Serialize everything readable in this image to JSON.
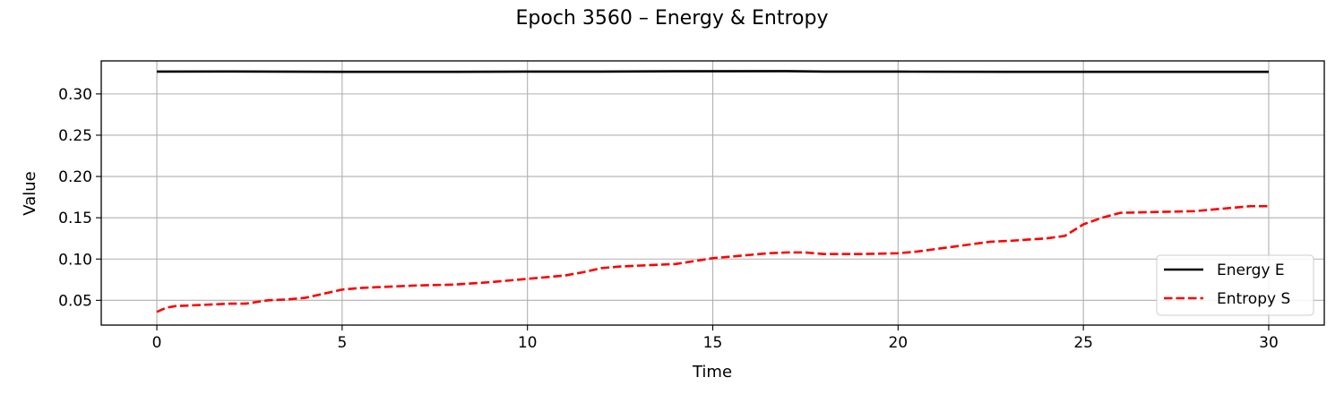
{
  "chart_data": {
    "type": "line",
    "title": "Epoch 3560 – Energy & Entropy",
    "xlabel": "Time",
    "ylabel": "Value",
    "xlim": [
      -1.5,
      31.5
    ],
    "ylim": [
      0.02,
      0.34
    ],
    "xticks": [
      0,
      5,
      10,
      15,
      20,
      25,
      30
    ],
    "yticks": [
      0.05,
      0.1,
      0.15,
      0.2,
      0.25,
      0.3
    ],
    "xtick_labels": [
      "0",
      "5",
      "10",
      "15",
      "20",
      "25",
      "30"
    ],
    "ytick_labels": [
      "0.05",
      "0.10",
      "0.15",
      "0.20",
      "0.25",
      "0.30"
    ],
    "grid": true,
    "legend_position": "lower-right",
    "series": [
      {
        "name": "Energy E",
        "color": "#000000",
        "style": "solid",
        "x": [
          0,
          2,
          5,
          8,
          10,
          12,
          14,
          17,
          18,
          20,
          23,
          25,
          27,
          30
        ],
        "y": [
          0.327,
          0.3272,
          0.3268,
          0.3268,
          0.327,
          0.327,
          0.3275,
          0.3276,
          0.327,
          0.327,
          0.3268,
          0.3268,
          0.3268,
          0.3268
        ]
      },
      {
        "name": "Entropy S",
        "color": "#ff0000",
        "style": "dashed",
        "x": [
          0,
          0.25,
          0.5,
          1,
          1.5,
          2,
          2.4,
          3,
          3.5,
          4,
          4.5,
          5,
          5.5,
          6,
          7,
          8,
          9,
          10,
          11,
          11.5,
          12,
          12.5,
          13,
          14,
          15,
          15.5,
          16,
          16.5,
          17,
          17.5,
          18,
          19,
          20,
          20.5,
          21,
          22,
          22.5,
          23,
          24,
          24.5,
          25,
          25.5,
          26,
          27,
          28,
          29,
          29.5,
          30
        ],
        "y": [
          0.036,
          0.041,
          0.043,
          0.044,
          0.045,
          0.046,
          0.046,
          0.05,
          0.051,
          0.053,
          0.058,
          0.063,
          0.065,
          0.066,
          0.068,
          0.069,
          0.072,
          0.076,
          0.08,
          0.084,
          0.089,
          0.091,
          0.092,
          0.094,
          0.101,
          0.103,
          0.105,
          0.107,
          0.108,
          0.108,
          0.106,
          0.106,
          0.107,
          0.109,
          0.112,
          0.118,
          0.121,
          0.122,
          0.125,
          0.128,
          0.142,
          0.15,
          0.156,
          0.157,
          0.158,
          0.162,
          0.164,
          0.164
        ]
      }
    ]
  }
}
